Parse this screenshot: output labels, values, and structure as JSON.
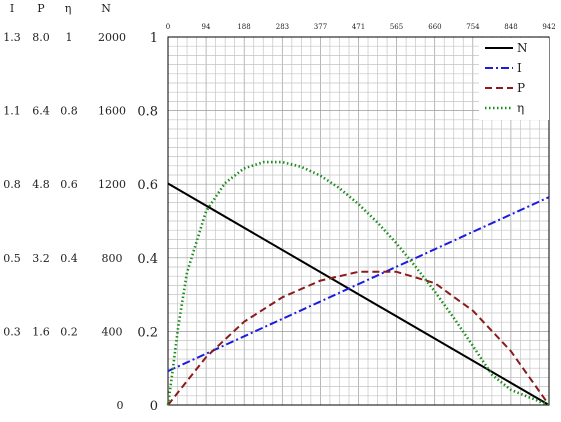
{
  "chart_data": {
    "type": "line",
    "title": "",
    "x": {
      "ticks": [
        0,
        94,
        188,
        283,
        377,
        471,
        565,
        660,
        754,
        848,
        942
      ],
      "range": [
        0,
        942
      ]
    },
    "y": {
      "ticks": [
        "0",
        "0.2",
        "0.4",
        "0.6",
        "0.8",
        "1"
      ],
      "range": [
        0,
        1
      ]
    },
    "left_columns": [
      {
        "header": "I",
        "labels": [
          "0.3",
          "0.5",
          "0.8",
          "1.1",
          "1.3"
        ]
      },
      {
        "header": "P",
        "labels": [
          "1.6",
          "3.2",
          "4.8",
          "6.4",
          "8.0"
        ]
      },
      {
        "header": "η",
        "labels": [
          "0.2",
          "0.4",
          "0.6",
          "0.8",
          "1"
        ]
      },
      {
        "header": "N",
        "labels": [
          "400",
          "800",
          "1200",
          "1600",
          "2000"
        ]
      }
    ],
    "bottom_left_label": "0",
    "grid": true,
    "legend": "top-right",
    "series": [
      {
        "name": "N",
        "color": "#000000",
        "dash": "solid",
        "x": [
          0,
          942
        ],
        "y": [
          0.602,
          0
        ]
      },
      {
        "name": "I",
        "color": "#1c1ce0",
        "dash": "dash-dot",
        "x": [
          0,
          942
        ],
        "y": [
          0.092,
          0.565
        ]
      },
      {
        "name": "P",
        "color": "#8b1a1a",
        "dash": "dashed",
        "x": [
          0,
          94,
          188,
          283,
          377,
          471,
          565,
          660,
          754,
          848,
          942
        ],
        "y": [
          0,
          0.13,
          0.226,
          0.293,
          0.338,
          0.362,
          0.362,
          0.331,
          0.256,
          0.146,
          0
        ]
      },
      {
        "name": "η",
        "color": "#1a8c1a",
        "dash": "dotted",
        "x": [
          0,
          10,
          25,
          47,
          94,
          141,
          188,
          236,
          283,
          330,
          377,
          424,
          471,
          518,
          565,
          612,
          660,
          707,
          754,
          801,
          848,
          895,
          942
        ],
        "y": [
          0,
          0.08,
          0.21,
          0.36,
          0.526,
          0.603,
          0.643,
          0.66,
          0.66,
          0.647,
          0.623,
          0.589,
          0.546,
          0.496,
          0.439,
          0.376,
          0.308,
          0.236,
          0.16,
          0.082,
          0.041,
          0.02,
          0
        ]
      }
    ]
  }
}
